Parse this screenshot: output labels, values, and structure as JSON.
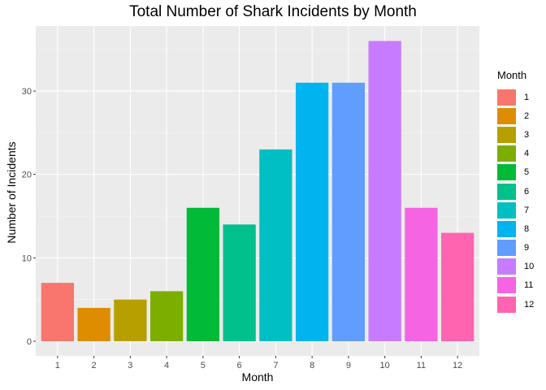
{
  "chart_data": {
    "type": "bar",
    "title": "Total Number of Shark Incidents by Month",
    "xlabel": "Month",
    "ylabel": "Number of Incidents",
    "categories": [
      "1",
      "2",
      "3",
      "4",
      "5",
      "6",
      "7",
      "8",
      "9",
      "10",
      "11",
      "12"
    ],
    "values": [
      7,
      4,
      5,
      6,
      16,
      14,
      23,
      31,
      31,
      36,
      16,
      13
    ],
    "ylim": [
      0,
      37.8
    ],
    "yticks": [
      0,
      10,
      20,
      30
    ],
    "colors": [
      "#F8766D",
      "#DE8C00",
      "#B79F00",
      "#7CAE00",
      "#00BA38",
      "#00C08B",
      "#00BFC4",
      "#00B4F0",
      "#619CFF",
      "#C77CFF",
      "#F564E3",
      "#FF64B0"
    ],
    "grid": true,
    "legend": {
      "title": "Month",
      "placement": "right",
      "labels": [
        "1",
        "2",
        "3",
        "4",
        "5",
        "6",
        "7",
        "8",
        "9",
        "10",
        "11",
        "12"
      ]
    }
  }
}
